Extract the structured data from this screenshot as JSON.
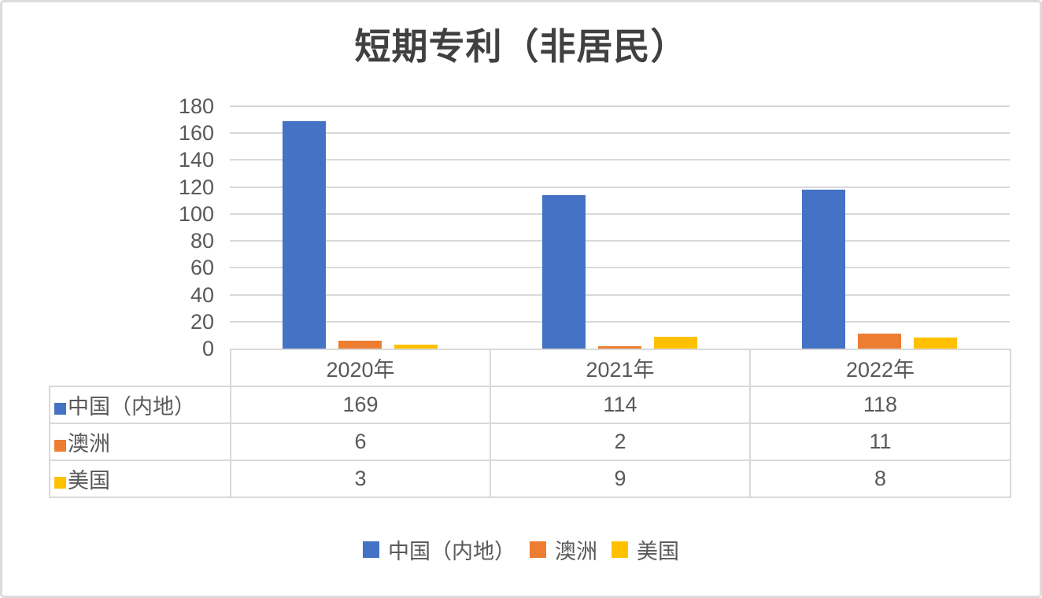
{
  "chart_data": {
    "type": "bar",
    "title": "短期专利（非居民）",
    "categories": [
      "2020年",
      "2021年",
      "2022年"
    ],
    "series": [
      {
        "name": "中国（内地）",
        "color": "#4472C4",
        "values": [
          169,
          114,
          118
        ]
      },
      {
        "name": "澳洲",
        "color": "#ED7D31",
        "values": [
          6,
          2,
          11
        ]
      },
      {
        "name": "美国",
        "color": "#FFC000",
        "values": [
          3,
          9,
          8
        ]
      }
    ],
    "xlabel": "",
    "ylabel": "",
    "ylim": [
      0,
      180
    ],
    "y_step": 20,
    "grid": true,
    "legend_position": "bottom",
    "data_table_shown": true
  },
  "colors": {
    "axis_text": "#595959",
    "gridline": "#D9D9D9",
    "table_border": "#D9D9D9",
    "title_text": "#404040",
    "frame_border": "#DCDCDC",
    "background": "#FFFFFF"
  }
}
